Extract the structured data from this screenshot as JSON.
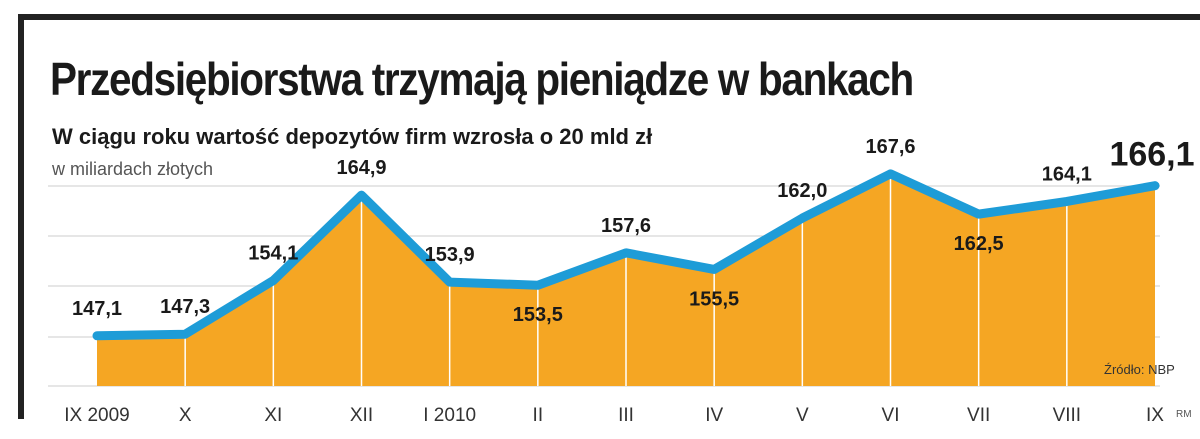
{
  "title": "Przedsiębiorstwa trzymają pieniądze w bankach",
  "subtitle": "W ciągu roku wartość depozytów firm wzrosła o 20 mld zł",
  "unit": "w miliardach złotych",
  "source": "Źródło: NBP",
  "initials": "RM",
  "colors": {
    "fill": "#f5a623",
    "line": "#1e9cd7",
    "grid": "#d8d8d8",
    "divider": "#ffffff"
  },
  "chart_data": {
    "type": "area",
    "categories": [
      "IX 2009",
      "X",
      "XI",
      "XII",
      "I 2010",
      "II",
      "III",
      "IV",
      "V",
      "VI",
      "VII",
      "VIII",
      "IX"
    ],
    "values": [
      147.1,
      147.3,
      154.1,
      164.9,
      153.9,
      153.5,
      157.6,
      155.5,
      162.0,
      167.6,
      162.5,
      164.1,
      166.1
    ],
    "value_labels": [
      "147,1",
      "147,3",
      "154,1",
      "164,9",
      "153,9",
      "153,5",
      "157,6",
      "155,5",
      "162,0",
      "167,6",
      "162,5",
      "164,1",
      "166,1"
    ],
    "grid": true
  }
}
